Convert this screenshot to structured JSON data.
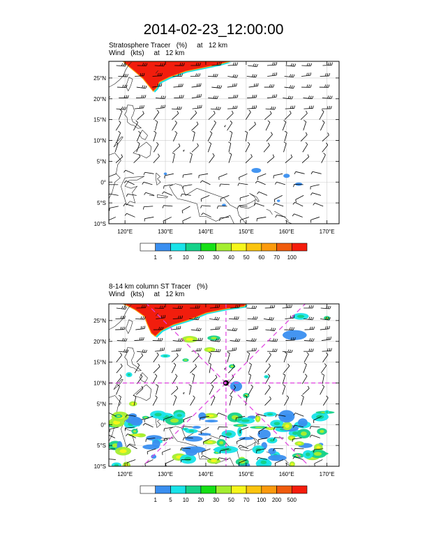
{
  "title": "2014-02-23_12:00:00",
  "panels": [
    {
      "line1": "Stratosphere Tracer   (%)     at   12 km",
      "line2": "Wind   (kts)     at   12 km",
      "lat_labels": [
        "25°N",
        "20°N",
        "15°N",
        "10°N",
        "5°N",
        "0°",
        "5°S",
        "10°S"
      ],
      "lat_values": [
        25,
        20,
        15,
        10,
        5,
        0,
        -5,
        -10
      ],
      "lon_labels": [
        "120°E",
        "130°E",
        "140°E",
        "150°E",
        "160°E",
        "170°E"
      ],
      "lon_values": [
        120,
        130,
        140,
        150,
        160,
        170
      ],
      "colorbar_labels": [
        "1",
        "5",
        "10",
        "20",
        "30",
        "40",
        "50",
        "60",
        "70",
        "100"
      ],
      "colorbar_colors": [
        "#ffffff",
        "#3a8ff0",
        "#19e3e9",
        "#15d28a",
        "#16e016",
        "#a4ee30",
        "#f6f61a",
        "#fbc40e",
        "#fb9a0d",
        "#f05b0c",
        "#f51c0c"
      ]
    },
    {
      "line1": "8-14 km column ST Tracer   (%)",
      "line2": "Wind   (kts)     at   12 km",
      "lat_labels": [
        "25°N",
        "20°N",
        "15°N",
        "10°N",
        "5°N",
        "0°",
        "5°S",
        "10°S"
      ],
      "lat_values": [
        25,
        20,
        15,
        10,
        5,
        0,
        -5,
        -10
      ],
      "lon_labels": [
        "120°E",
        "130°E",
        "140°E",
        "150°E",
        "160°E",
        "170°E"
      ],
      "lon_values": [
        120,
        130,
        140,
        150,
        160,
        170
      ],
      "colorbar_labels": [
        "1",
        "5",
        "10",
        "20",
        "30",
        "50",
        "70",
        "100",
        "200",
        "500"
      ],
      "colorbar_colors": [
        "#ffffff",
        "#3a8ff0",
        "#19e3e9",
        "#15d28a",
        "#16e016",
        "#a4ee30",
        "#f6f61a",
        "#fbc40e",
        "#fb9a0d",
        "#f05b0c",
        "#f51c0c"
      ],
      "storm_marker": {
        "lon": 145,
        "lat": 10,
        "color": "#e040e0"
      }
    }
  ],
  "map_extent": {
    "lon_min": 116,
    "lon_max": 173,
    "lat_min": -10,
    "lat_max": 29
  },
  "colors": {
    "tracer_red": "#f21d0d",
    "coast": "#222222",
    "grid": "#cccccc",
    "marker": "#e040e0"
  }
}
